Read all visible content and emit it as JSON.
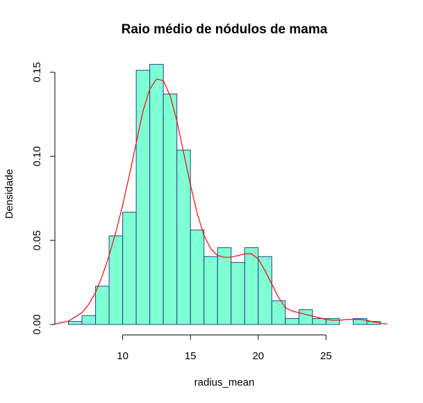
{
  "chart_data": {
    "type": "bar",
    "title": "Raio médio de nódulos de mama",
    "xlabel": "radius_mean",
    "ylabel": "Densidade",
    "xlim": [
      5,
      30
    ],
    "ylim": [
      0,
      0.15
    ],
    "x_ticks": [
      {
        "value": 10,
        "label": "10"
      },
      {
        "value": 15,
        "label": "15"
      },
      {
        "value": 20,
        "label": "20"
      },
      {
        "value": 25,
        "label": "25"
      }
    ],
    "y_ticks": [
      {
        "value": 0.0,
        "label": "0.00"
      },
      {
        "value": 0.05,
        "label": "0.05"
      },
      {
        "value": 0.1,
        "label": "0.10"
      },
      {
        "value": 0.15,
        "label": "0.15"
      }
    ],
    "bin_edges": [
      6,
      7,
      8,
      9,
      10,
      11,
      12,
      13,
      14,
      15,
      16,
      17,
      18,
      19,
      20,
      21,
      22,
      23,
      24,
      25,
      26,
      27,
      28,
      29
    ],
    "density": [
      0.0018,
      0.0053,
      0.0228,
      0.0527,
      0.0668,
      0.1512,
      0.1547,
      0.1371,
      0.1037,
      0.0562,
      0.0404,
      0.0457,
      0.0369,
      0.0457,
      0.0404,
      0.0141,
      0.0035,
      0.0088,
      0.0035,
      0.0035,
      0,
      0.0035,
      0.0018
    ],
    "density_curve": {
      "x": [
        5.0,
        6.0,
        7.0,
        7.5,
        8.0,
        8.5,
        9.0,
        9.5,
        10.0,
        10.5,
        11.0,
        11.5,
        12.0,
        12.5,
        13.0,
        13.5,
        14.0,
        14.5,
        15.0,
        15.5,
        16.0,
        16.5,
        17.0,
        17.5,
        18.0,
        18.5,
        19.0,
        19.5,
        20.0,
        20.5,
        21.0,
        21.5,
        22.0,
        22.5,
        23.0,
        23.5,
        24.0,
        24.5,
        25.0,
        25.5,
        26.0,
        26.5,
        27.0,
        27.5,
        28.0,
        28.5,
        29.0,
        29.5
      ],
      "y": [
        0.0003,
        0.002,
        0.007,
        0.012,
        0.019,
        0.029,
        0.041,
        0.055,
        0.071,
        0.089,
        0.108,
        0.127,
        0.14,
        0.146,
        0.145,
        0.136,
        0.121,
        0.102,
        0.083,
        0.066,
        0.053,
        0.045,
        0.041,
        0.04,
        0.04,
        0.041,
        0.042,
        0.042,
        0.039,
        0.032,
        0.024,
        0.016,
        0.01,
        0.008,
        0.007,
        0.006,
        0.005,
        0.004,
        0.003,
        0.0025,
        0.0025,
        0.003,
        0.003,
        0.003,
        0.0025,
        0.0015,
        0.0008,
        0.0003
      ]
    },
    "colors": {
      "bar_fill": "#7fffd4",
      "bar_stroke": "#27408b",
      "curve": "#ff0000",
      "axis": "#000000"
    },
    "grid": false,
    "legend": "none"
  }
}
